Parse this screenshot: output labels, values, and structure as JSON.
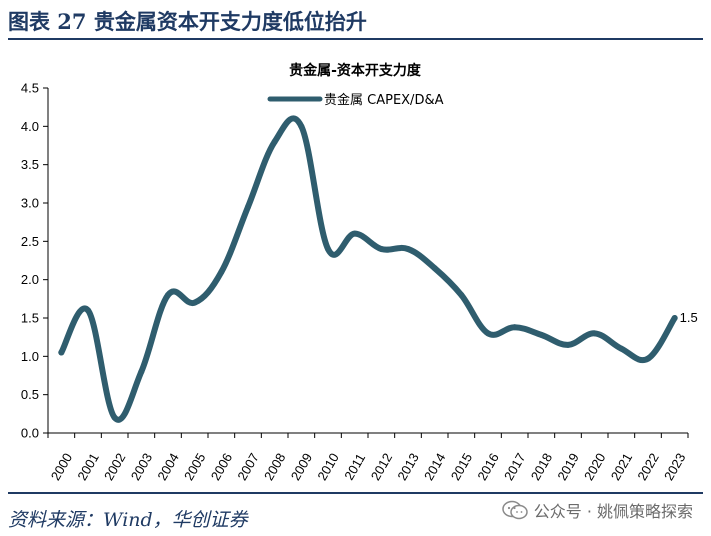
{
  "header": {
    "title": "图表 27 贵金属资本开支力度低位抬升"
  },
  "footer": {
    "source": "资料来源：Wind，华创证券",
    "watermark": "公众号 · 姚佩策略探索",
    "watermark_icon": "wechat-icon"
  },
  "colors": {
    "line": "#2f5d6e",
    "accent": "#1f3a63"
  },
  "chart_data": {
    "type": "line",
    "title": "贵金属-资本开支力度",
    "xlabel": "",
    "ylabel": "",
    "categories": [
      "2000",
      "2001",
      "2002",
      "2003",
      "2004",
      "2005",
      "2006",
      "2007",
      "2008",
      "2009",
      "2010",
      "2011",
      "2012",
      "2013",
      "2014",
      "2015",
      "2016",
      "2017",
      "2018",
      "2019",
      "2020",
      "2021",
      "2022",
      "2023"
    ],
    "series": [
      {
        "name": "贵金属 CAPEX/D&A",
        "values": [
          1.05,
          1.6,
          0.2,
          0.8,
          1.8,
          1.7,
          2.1,
          2.95,
          3.8,
          4.0,
          2.4,
          2.6,
          2.4,
          2.4,
          2.15,
          1.8,
          1.3,
          1.38,
          1.28,
          1.15,
          1.3,
          1.1,
          0.97,
          1.5
        ]
      }
    ],
    "ylim": [
      0,
      4.5
    ],
    "yticks": [
      0.0,
      0.5,
      1.0,
      1.5,
      2.0,
      2.5,
      3.0,
      3.5,
      4.0,
      4.5
    ],
    "ytick_labels": [
      "0.0",
      "0.5",
      "1.0",
      "1.5",
      "2.0",
      "2.5",
      "3.0",
      "3.5",
      "4.0",
      "4.5"
    ],
    "legend_position": "top-center",
    "grid": false,
    "annotations": [
      {
        "category": "2023",
        "text": "1.5"
      }
    ]
  }
}
